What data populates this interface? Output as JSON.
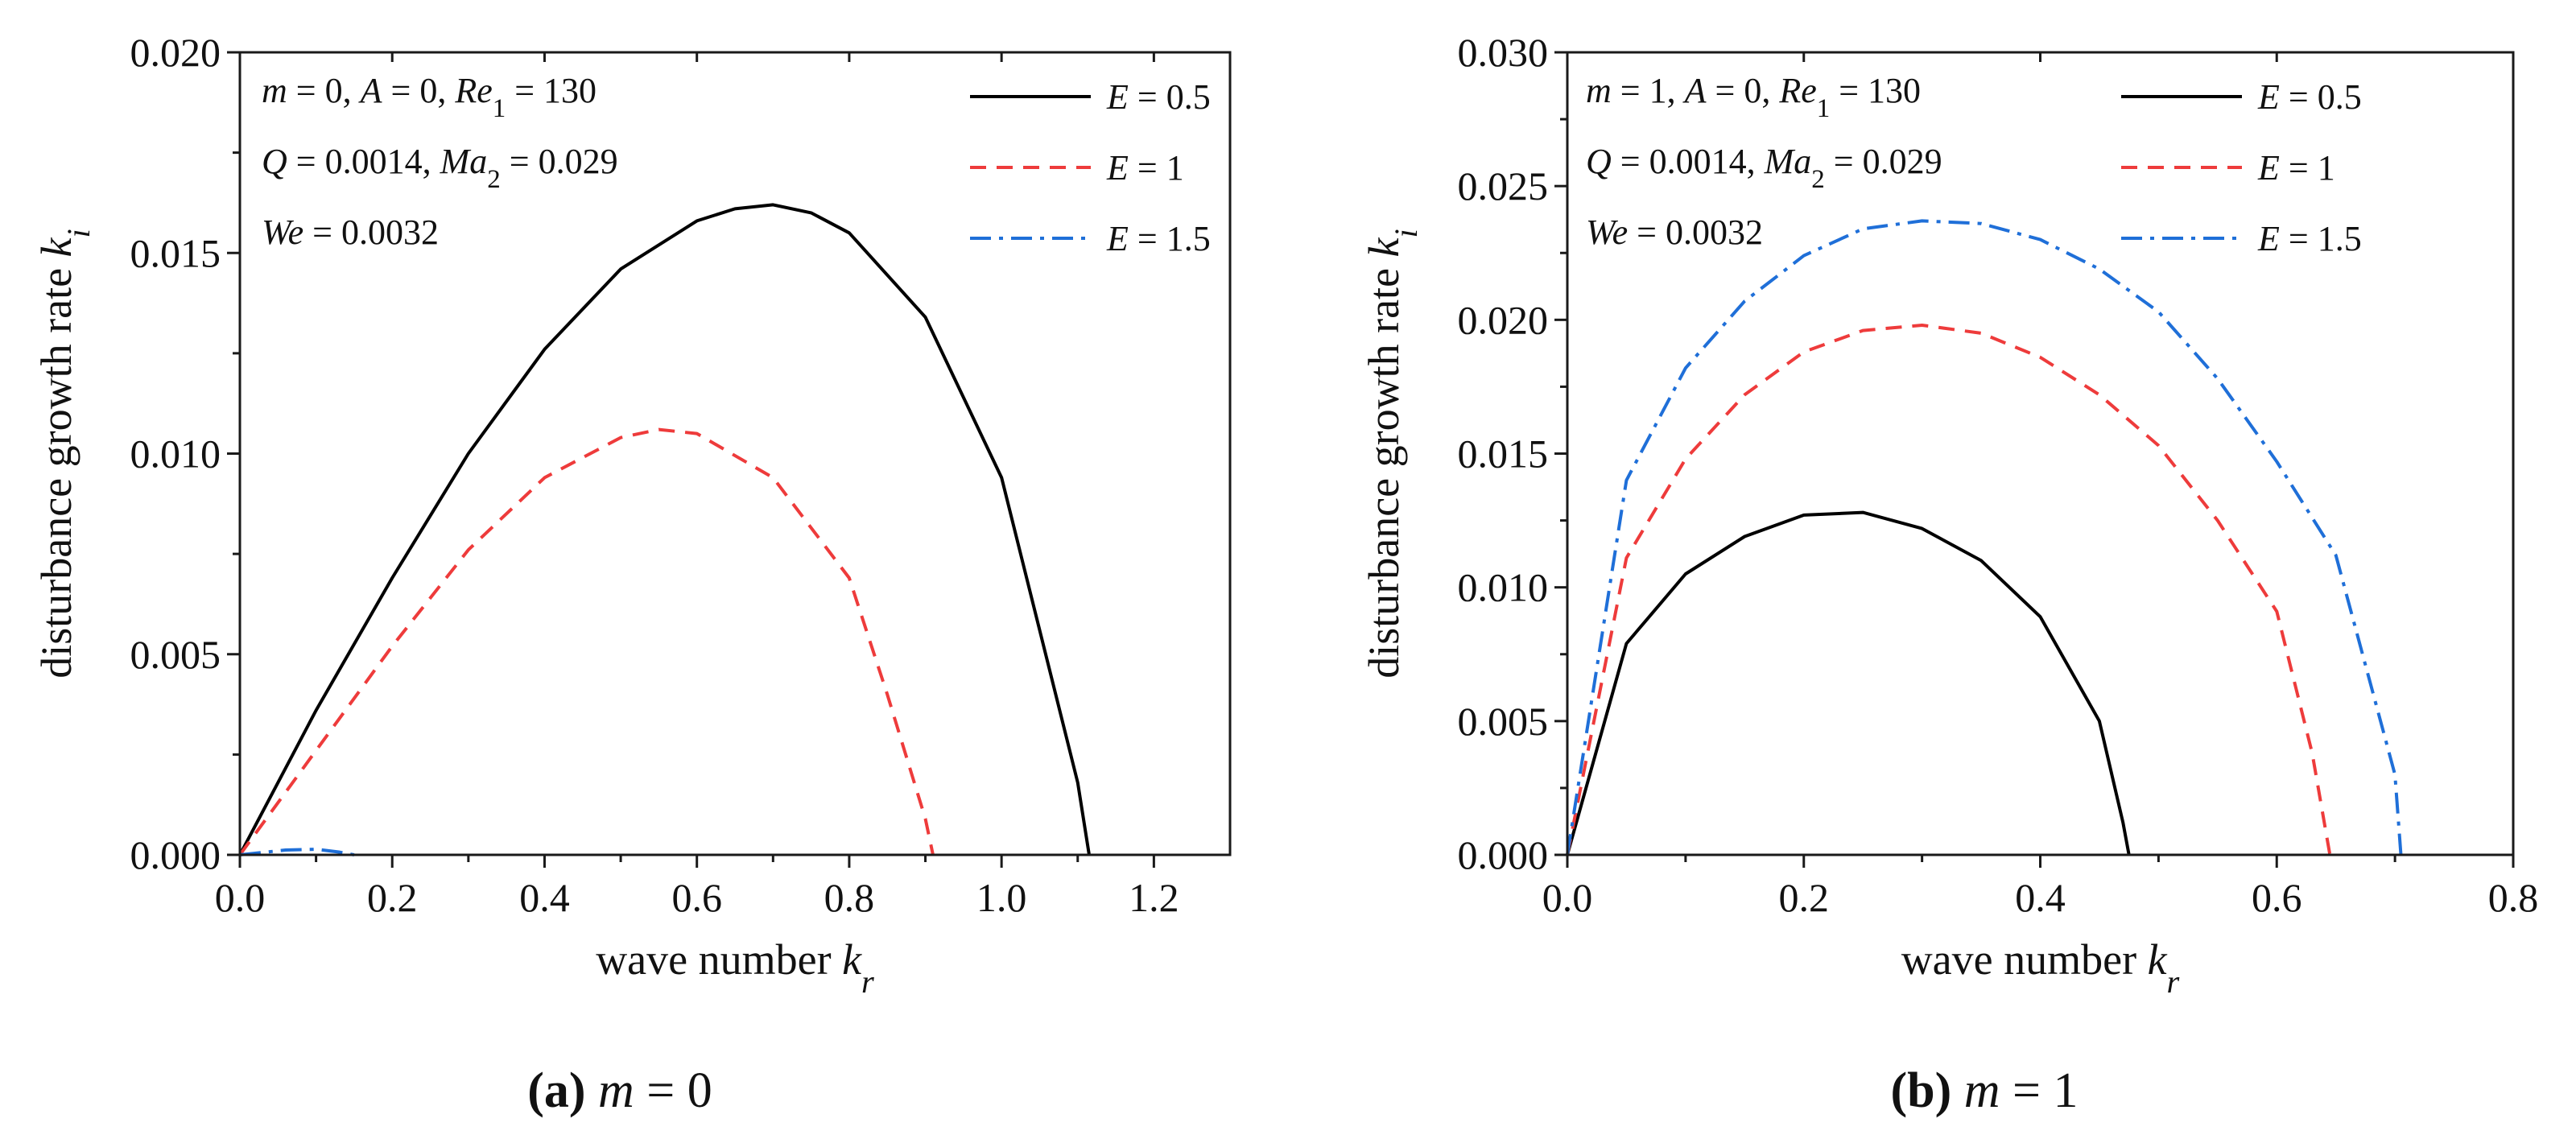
{
  "chart_data": [
    {
      "type": "line",
      "panel": "a",
      "caption_bold": "(a)",
      "caption_var": "m",
      "caption_rest": " = 0",
      "xlabel_text": "wave number ",
      "xlabel_var": "k",
      "xlabel_sub": "r",
      "ylabel_text": "disturbance growth rate ",
      "ylabel_var": "k",
      "ylabel_sub": "i",
      "xlim": [
        0,
        1.3
      ],
      "ylim": [
        0,
        0.02
      ],
      "xticks": [
        0,
        0.2,
        0.4,
        0.6,
        0.8,
        1.0,
        1.2
      ],
      "xtick_labels": [
        "0.0",
        "0.2",
        "0.4",
        "0.6",
        "0.8",
        "1.0",
        "1.2"
      ],
      "yticks": [
        0,
        0.005,
        0.01,
        0.015,
        0.02
      ],
      "ytick_labels": [
        "0.000",
        "0.005",
        "0.010",
        "0.015",
        "0.020"
      ],
      "annotation_lines": [
        [
          {
            "t": "m",
            "i": true
          },
          {
            "t": " = 0, "
          },
          {
            "t": "A",
            "i": true
          },
          {
            "t": " = 0, "
          },
          {
            "t": "Re",
            "i": true
          },
          {
            "t": "1",
            "sub": true
          },
          {
            "t": " = 130"
          }
        ],
        [
          {
            "t": "Q",
            "i": true
          },
          {
            "t": " = 0.0014, "
          },
          {
            "t": "Ma",
            "i": true
          },
          {
            "t": "2",
            "sub": true
          },
          {
            "t": " = 0.029"
          }
        ],
        [
          {
            "t": "We",
            "i": true
          },
          {
            "t": " = 0.0032"
          }
        ]
      ],
      "series": [
        {
          "name_var": "E",
          "name_rest": " = 0.5",
          "color": "#000000",
          "dash": "solid",
          "x": [
            0,
            0.1,
            0.2,
            0.3,
            0.4,
            0.5,
            0.6,
            0.65,
            0.7,
            0.75,
            0.8,
            0.9,
            1.0,
            1.1,
            1.115
          ],
          "y": [
            0,
            0.0036,
            0.0069,
            0.01,
            0.0126,
            0.0146,
            0.0158,
            0.0161,
            0.0162,
            0.016,
            0.0155,
            0.0134,
            0.0094,
            0.0018,
            0
          ]
        },
        {
          "name_var": "E",
          "name_rest": " = 1",
          "color": "#ee3b3b",
          "dash": "dash",
          "x": [
            0,
            0.1,
            0.2,
            0.3,
            0.4,
            0.5,
            0.55,
            0.6,
            0.7,
            0.8,
            0.85,
            0.9,
            0.91
          ],
          "y": [
            0,
            0.0026,
            0.0052,
            0.0076,
            0.0094,
            0.0104,
            0.0106,
            0.0105,
            0.0094,
            0.0069,
            0.004,
            0.0009,
            0
          ]
        },
        {
          "name_var": "E",
          "name_rest": " = 1.5",
          "color": "#1f6fd8",
          "dash": "dashdot",
          "x": [
            0,
            0.03,
            0.06,
            0.1,
            0.13,
            0.15
          ],
          "y": [
            0,
            6e-05,
            0.00012,
            0.00014,
            7e-05,
            0
          ]
        }
      ]
    },
    {
      "type": "line",
      "panel": "b",
      "caption_bold": "(b)",
      "caption_var": "m",
      "caption_rest": " = 1",
      "xlabel_text": "wave number ",
      "xlabel_var": "k",
      "xlabel_sub": "r",
      "ylabel_text": "disturbance growth rate ",
      "ylabel_var": "k",
      "ylabel_sub": "i",
      "xlim": [
        0,
        0.8
      ],
      "ylim": [
        0,
        0.03
      ],
      "xticks": [
        0,
        0.2,
        0.4,
        0.6,
        0.8
      ],
      "xtick_labels": [
        "0.0",
        "0.2",
        "0.4",
        "0.6",
        "0.8"
      ],
      "yticks": [
        0,
        0.005,
        0.01,
        0.015,
        0.02,
        0.025,
        0.03
      ],
      "ytick_labels": [
        "0.000",
        "0.005",
        "0.010",
        "0.015",
        "0.020",
        "0.025",
        "0.030"
      ],
      "annotation_lines": [
        [
          {
            "t": "m",
            "i": true
          },
          {
            "t": " = 1, "
          },
          {
            "t": "A",
            "i": true
          },
          {
            "t": " = 0, "
          },
          {
            "t": "Re",
            "i": true
          },
          {
            "t": "1",
            "sub": true
          },
          {
            "t": " = 130"
          }
        ],
        [
          {
            "t": "Q",
            "i": true
          },
          {
            "t": " = 0.0014, "
          },
          {
            "t": "Ma",
            "i": true
          },
          {
            "t": "2",
            "sub": true
          },
          {
            "t": " = 0.029"
          }
        ],
        [
          {
            "t": "We",
            "i": true
          },
          {
            "t": " = 0.0032"
          }
        ]
      ],
      "series": [
        {
          "name_var": "E",
          "name_rest": " = 0.5",
          "color": "#000000",
          "dash": "solid",
          "x": [
            0,
            0.05,
            0.1,
            0.15,
            0.2,
            0.25,
            0.3,
            0.35,
            0.4,
            0.45,
            0.47,
            0.475
          ],
          "y": [
            0,
            0.0079,
            0.0105,
            0.0119,
            0.0127,
            0.0128,
            0.0122,
            0.011,
            0.0089,
            0.005,
            0.0012,
            0
          ]
        },
        {
          "name_var": "E",
          "name_rest": " = 1",
          "color": "#ee3b3b",
          "dash": "dash",
          "x": [
            0,
            0.05,
            0.1,
            0.15,
            0.2,
            0.25,
            0.3,
            0.35,
            0.4,
            0.45,
            0.5,
            0.55,
            0.6,
            0.63,
            0.645
          ],
          "y": [
            0,
            0.0111,
            0.0148,
            0.0172,
            0.0188,
            0.0196,
            0.0198,
            0.0195,
            0.0186,
            0.0172,
            0.0153,
            0.0125,
            0.0091,
            0.0038,
            0
          ]
        },
        {
          "name_var": "E",
          "name_rest": " = 1.5",
          "color": "#1f6fd8",
          "dash": "dashdot",
          "x": [
            0,
            0.05,
            0.1,
            0.15,
            0.2,
            0.25,
            0.3,
            0.35,
            0.4,
            0.45,
            0.5,
            0.55,
            0.6,
            0.65,
            0.7,
            0.705
          ],
          "y": [
            0,
            0.014,
            0.0182,
            0.0207,
            0.0224,
            0.0234,
            0.0237,
            0.0236,
            0.023,
            0.0219,
            0.0203,
            0.0178,
            0.0147,
            0.0112,
            0.003,
            0
          ]
        }
      ]
    }
  ]
}
